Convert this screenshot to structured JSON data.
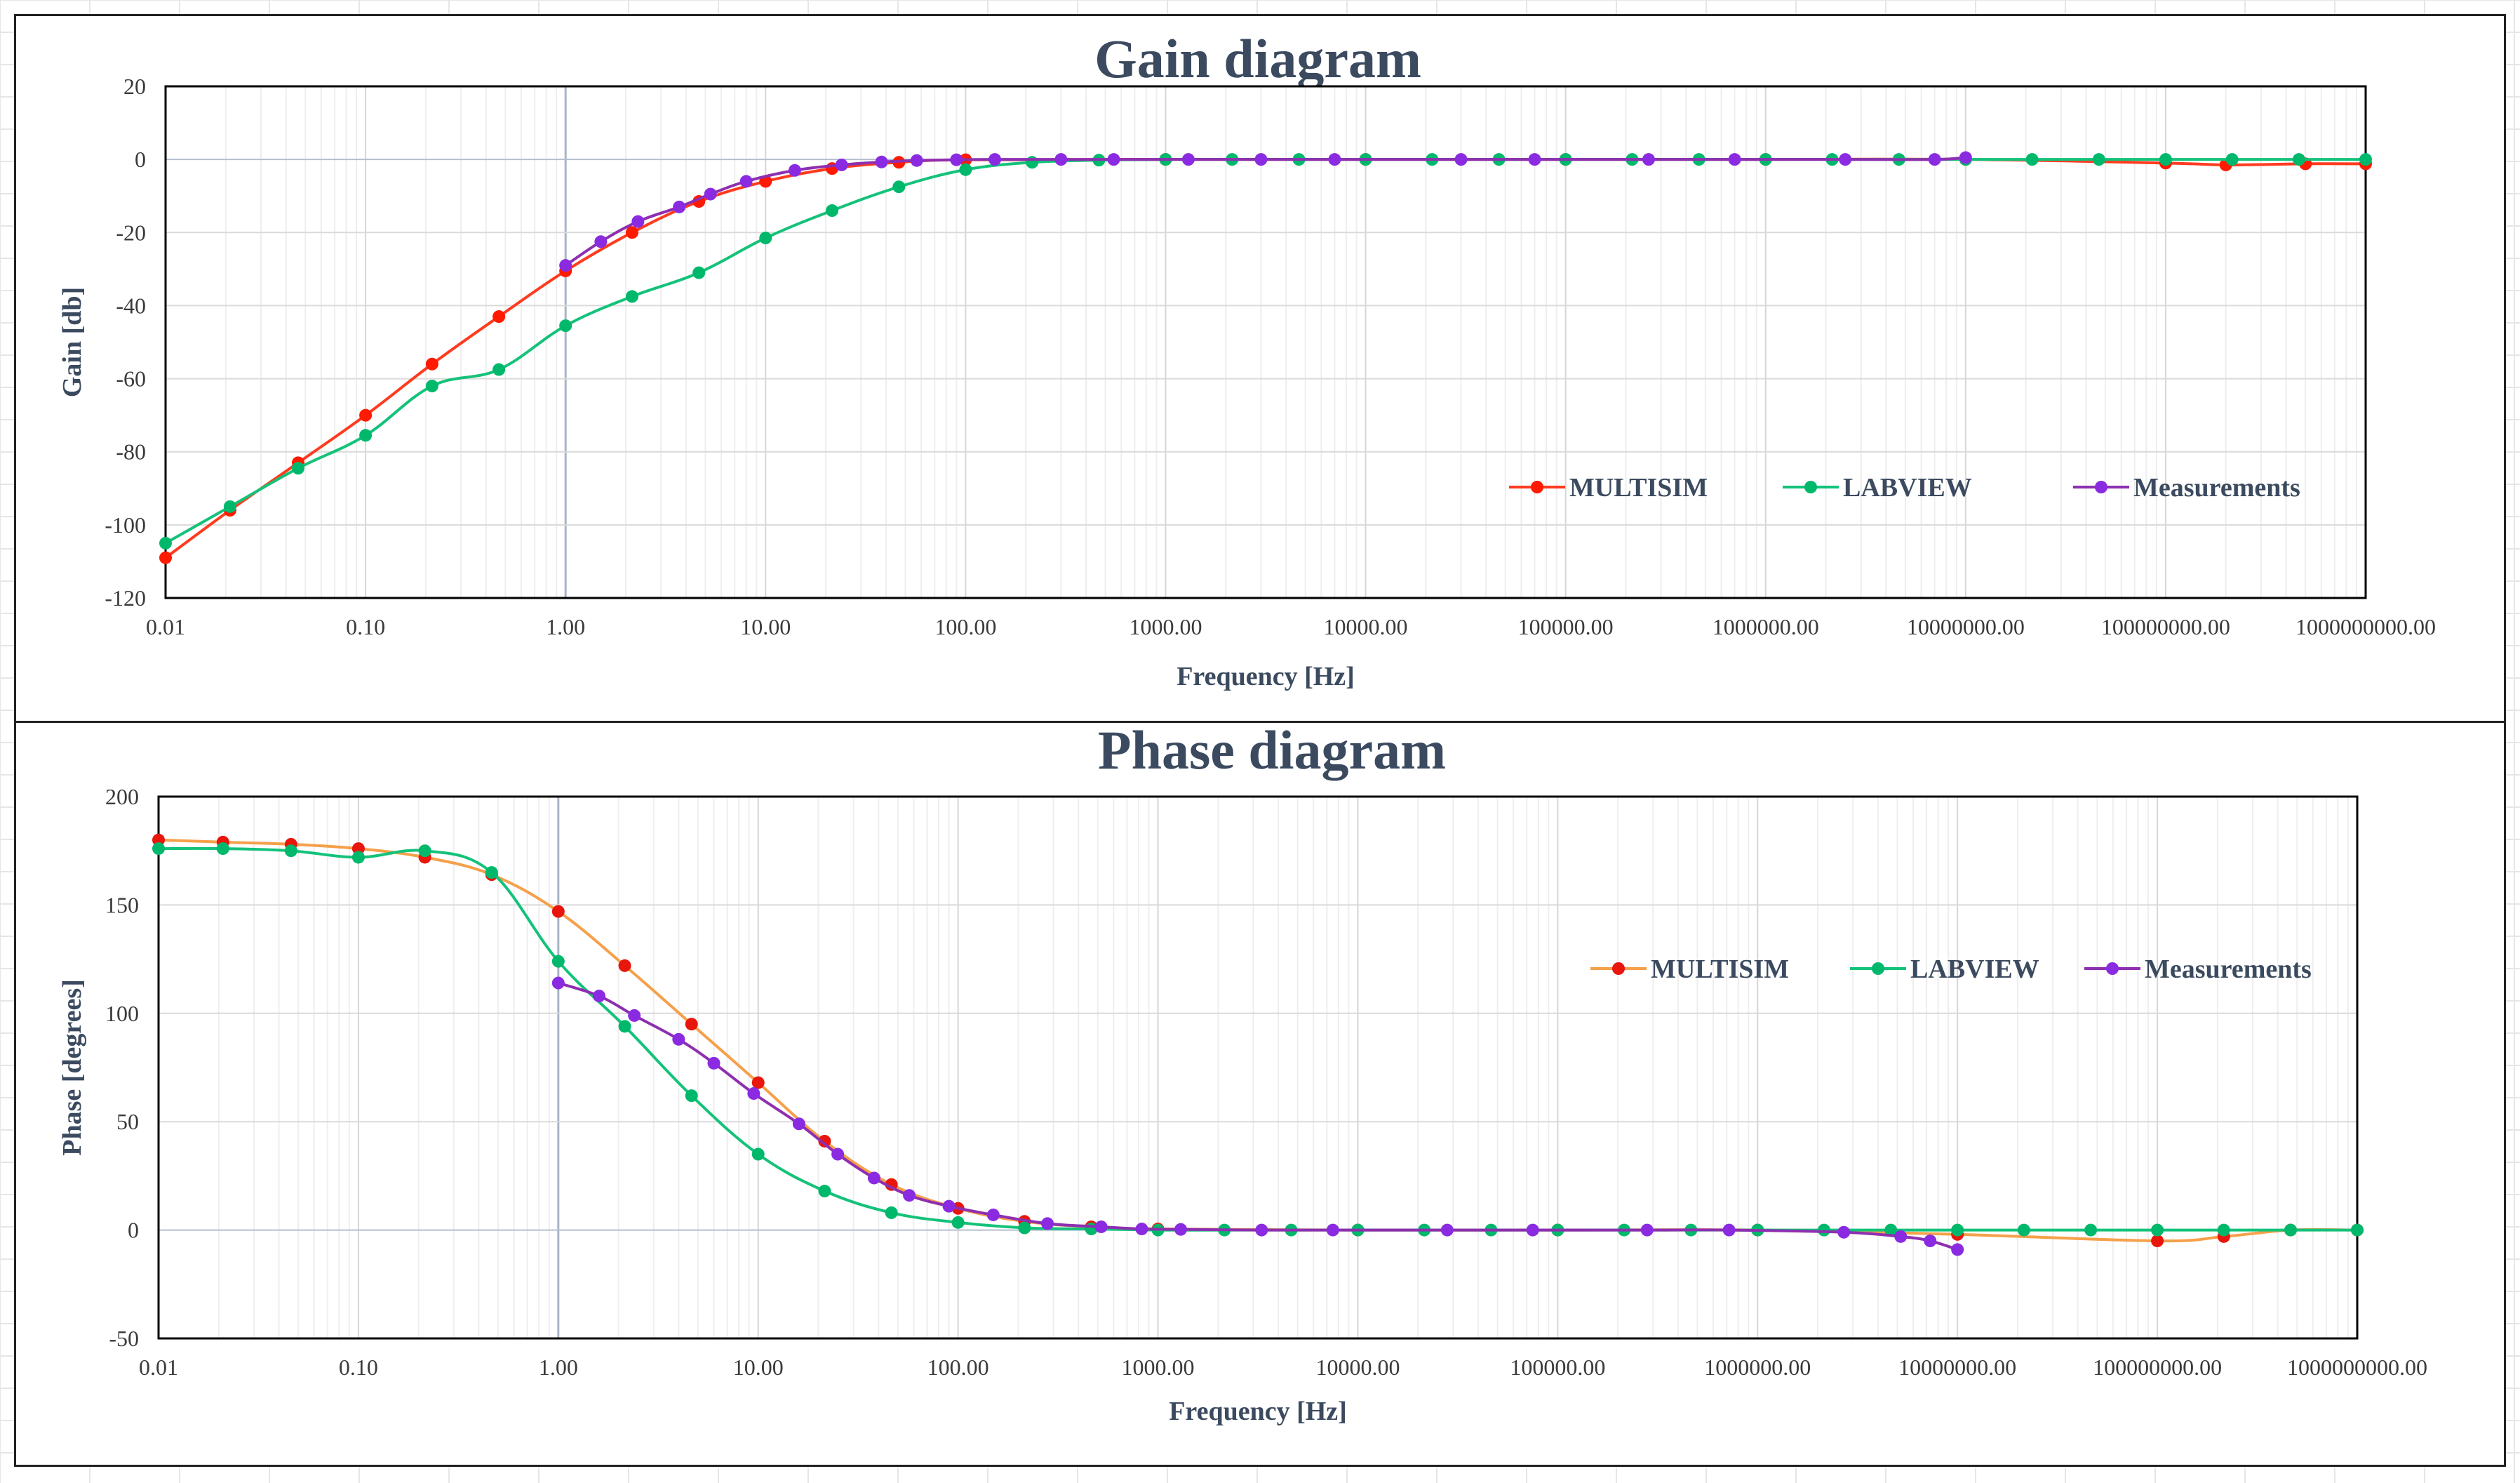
{
  "chart_data": [
    {
      "type": "line",
      "title": "Gain diagram",
      "xlabel": "Frequency [Hz]",
      "ylabel": "Gain [db]",
      "x_scale": "log",
      "xlim": [
        0.01,
        1000000000
      ],
      "ylim": [
        -120,
        20
      ],
      "grid": true,
      "legend_position": "bottom-right",
      "x_tick_labels": [
        "0.01",
        "0.10",
        "1.00",
        "10.00",
        "100.00",
        "1000.00",
        "10000.00",
        "100000.00",
        "1000000.00",
        "10000000.00",
        "100000000.00",
        "1000000000.00"
      ],
      "y_tick_labels": [
        "20",
        "0",
        "-20",
        "-40",
        "-60",
        "-80",
        "-100",
        "-120"
      ],
      "series": [
        {
          "name": "MULTISIM",
          "color": "#ff3b1f",
          "marker_color": "#ff1a00",
          "x": [
            0.01,
            0.021,
            0.046,
            0.1,
            0.215,
            0.464,
            1,
            2.15,
            4.64,
            10,
            21.5,
            46.4,
            100,
            1000,
            10000,
            100000,
            1000000,
            10000000,
            100000000,
            200000000,
            500000000,
            1000000000
          ],
          "y": [
            -109,
            -96,
            -83,
            -70,
            -56,
            -43,
            -30.5,
            -20,
            -11.5,
            -6,
            -2.5,
            -0.8,
            -0.1,
            0,
            0,
            0,
            0,
            0,
            -1,
            -1.5,
            -1.2,
            -1.2
          ]
        },
        {
          "name": "LABVIEW",
          "color": "#14c27a",
          "marker_color": "#00b86b",
          "x": [
            0.01,
            0.021,
            0.046,
            0.1,
            0.215,
            0.464,
            1,
            2.15,
            4.64,
            10,
            21.5,
            46.4,
            100,
            215,
            464,
            1000,
            2150,
            4640,
            10000,
            21500,
            46400,
            100000,
            215000,
            464000,
            1000000,
            2150000,
            4640000,
            10000000,
            21500000,
            46400000,
            100000000,
            215000000,
            464000000,
            1000000000
          ],
          "y": [
            -105,
            -95,
            -84.5,
            -75.5,
            -62,
            -57.5,
            -45.5,
            -37.5,
            -31,
            -21.5,
            -14,
            -7.5,
            -2.8,
            -0.8,
            -0.2,
            0,
            0,
            0,
            0,
            0,
            0,
            0,
            0,
            0,
            0,
            0,
            0,
            0,
            0,
            0,
            0,
            0,
            0,
            0
          ]
        },
        {
          "name": "Measurements",
          "color": "#8e2fb0",
          "marker_color": "#8a2be2",
          "x": [
            1,
            1.5,
            2.3,
            3.7,
            5.3,
            8,
            14,
            24,
            38,
            57,
            90,
            140,
            300,
            550,
            1300,
            3000,
            7000,
            30000,
            70000,
            260000,
            700000,
            2500000,
            7000000,
            10000000
          ],
          "y": [
            -29,
            -22.5,
            -17,
            -13,
            -9.5,
            -6,
            -3,
            -1.5,
            -0.7,
            -0.3,
            -0.1,
            0,
            0,
            0,
            0,
            0,
            0,
            0,
            0,
            0,
            0,
            0,
            0,
            0.5
          ]
        }
      ]
    },
    {
      "type": "line",
      "title": "Phase diagram",
      "xlabel": "Frequency [Hz]",
      "ylabel": "Phase [degrees]",
      "x_scale": "log",
      "xlim": [
        0.01,
        1000000000
      ],
      "ylim": [
        -50,
        200
      ],
      "grid": true,
      "legend_position": "top-right",
      "x_tick_labels": [
        "0.01",
        "0.10",
        "1.00",
        "10.00",
        "100.00",
        "1000.00",
        "10000.00",
        "100000.00",
        "1000000.00",
        "10000000.00",
        "100000000.00",
        "1000000000.00"
      ],
      "y_tick_labels": [
        "200",
        "150",
        "100",
        "50",
        "0",
        "-50"
      ],
      "series": [
        {
          "name": "MULTISIM",
          "color": "#f5a04a",
          "marker_color": "#e8160c",
          "x": [
            0.01,
            0.021,
            0.046,
            0.1,
            0.215,
            0.464,
            1,
            2.15,
            4.64,
            10,
            21.5,
            46.4,
            100,
            215,
            464,
            1000,
            10000,
            100000,
            1000000,
            10000000,
            100000000,
            215000000,
            464000000,
            1000000000
          ],
          "y": [
            180,
            179,
            178,
            176,
            172,
            164,
            147,
            122,
            95,
            68,
            41,
            21,
            10,
            4,
            1.5,
            0.5,
            0,
            0,
            0,
            -2,
            -5,
            -3,
            0,
            0
          ]
        },
        {
          "name": "LABVIEW",
          "color": "#14c27a",
          "marker_color": "#00b86b",
          "x": [
            0.01,
            0.021,
            0.046,
            0.1,
            0.215,
            0.464,
            1,
            2.15,
            4.64,
            10,
            21.5,
            46.4,
            100,
            215,
            464,
            1000,
            2150,
            4640,
            10000,
            21500,
            46400,
            100000,
            215000,
            464000,
            1000000,
            2150000,
            4640000,
            10000000,
            21500000,
            46400000,
            100000000,
            215000000,
            464000000,
            1000000000
          ],
          "y": [
            176,
            176,
            175,
            172,
            175,
            165,
            124,
            94,
            62,
            35,
            18,
            8,
            3.5,
            1,
            0.5,
            0,
            0,
            0,
            0,
            0,
            0,
            0,
            0,
            0,
            0,
            0,
            0,
            0,
            0,
            0,
            0,
            0,
            0,
            0
          ]
        },
        {
          "name": "Measurements",
          "color": "#8e2fb0",
          "marker_color": "#8a2be2",
          "x": [
            1,
            1.6,
            2.4,
            4,
            6,
            9.5,
            16,
            25,
            38,
            57,
            90,
            150,
            280,
            520,
            830,
            1300,
            3300,
            7500,
            28000,
            75000,
            280000,
            720000,
            2700000,
            5200000,
            7300000,
            10000000
          ],
          "y": [
            114,
            108,
            99,
            88,
            77,
            63,
            49,
            35,
            24,
            16,
            11,
            7,
            3,
            1.5,
            0.5,
            0.3,
            0,
            0,
            0,
            0,
            0,
            0,
            -1,
            -3,
            -5,
            -9
          ]
        }
      ]
    }
  ]
}
